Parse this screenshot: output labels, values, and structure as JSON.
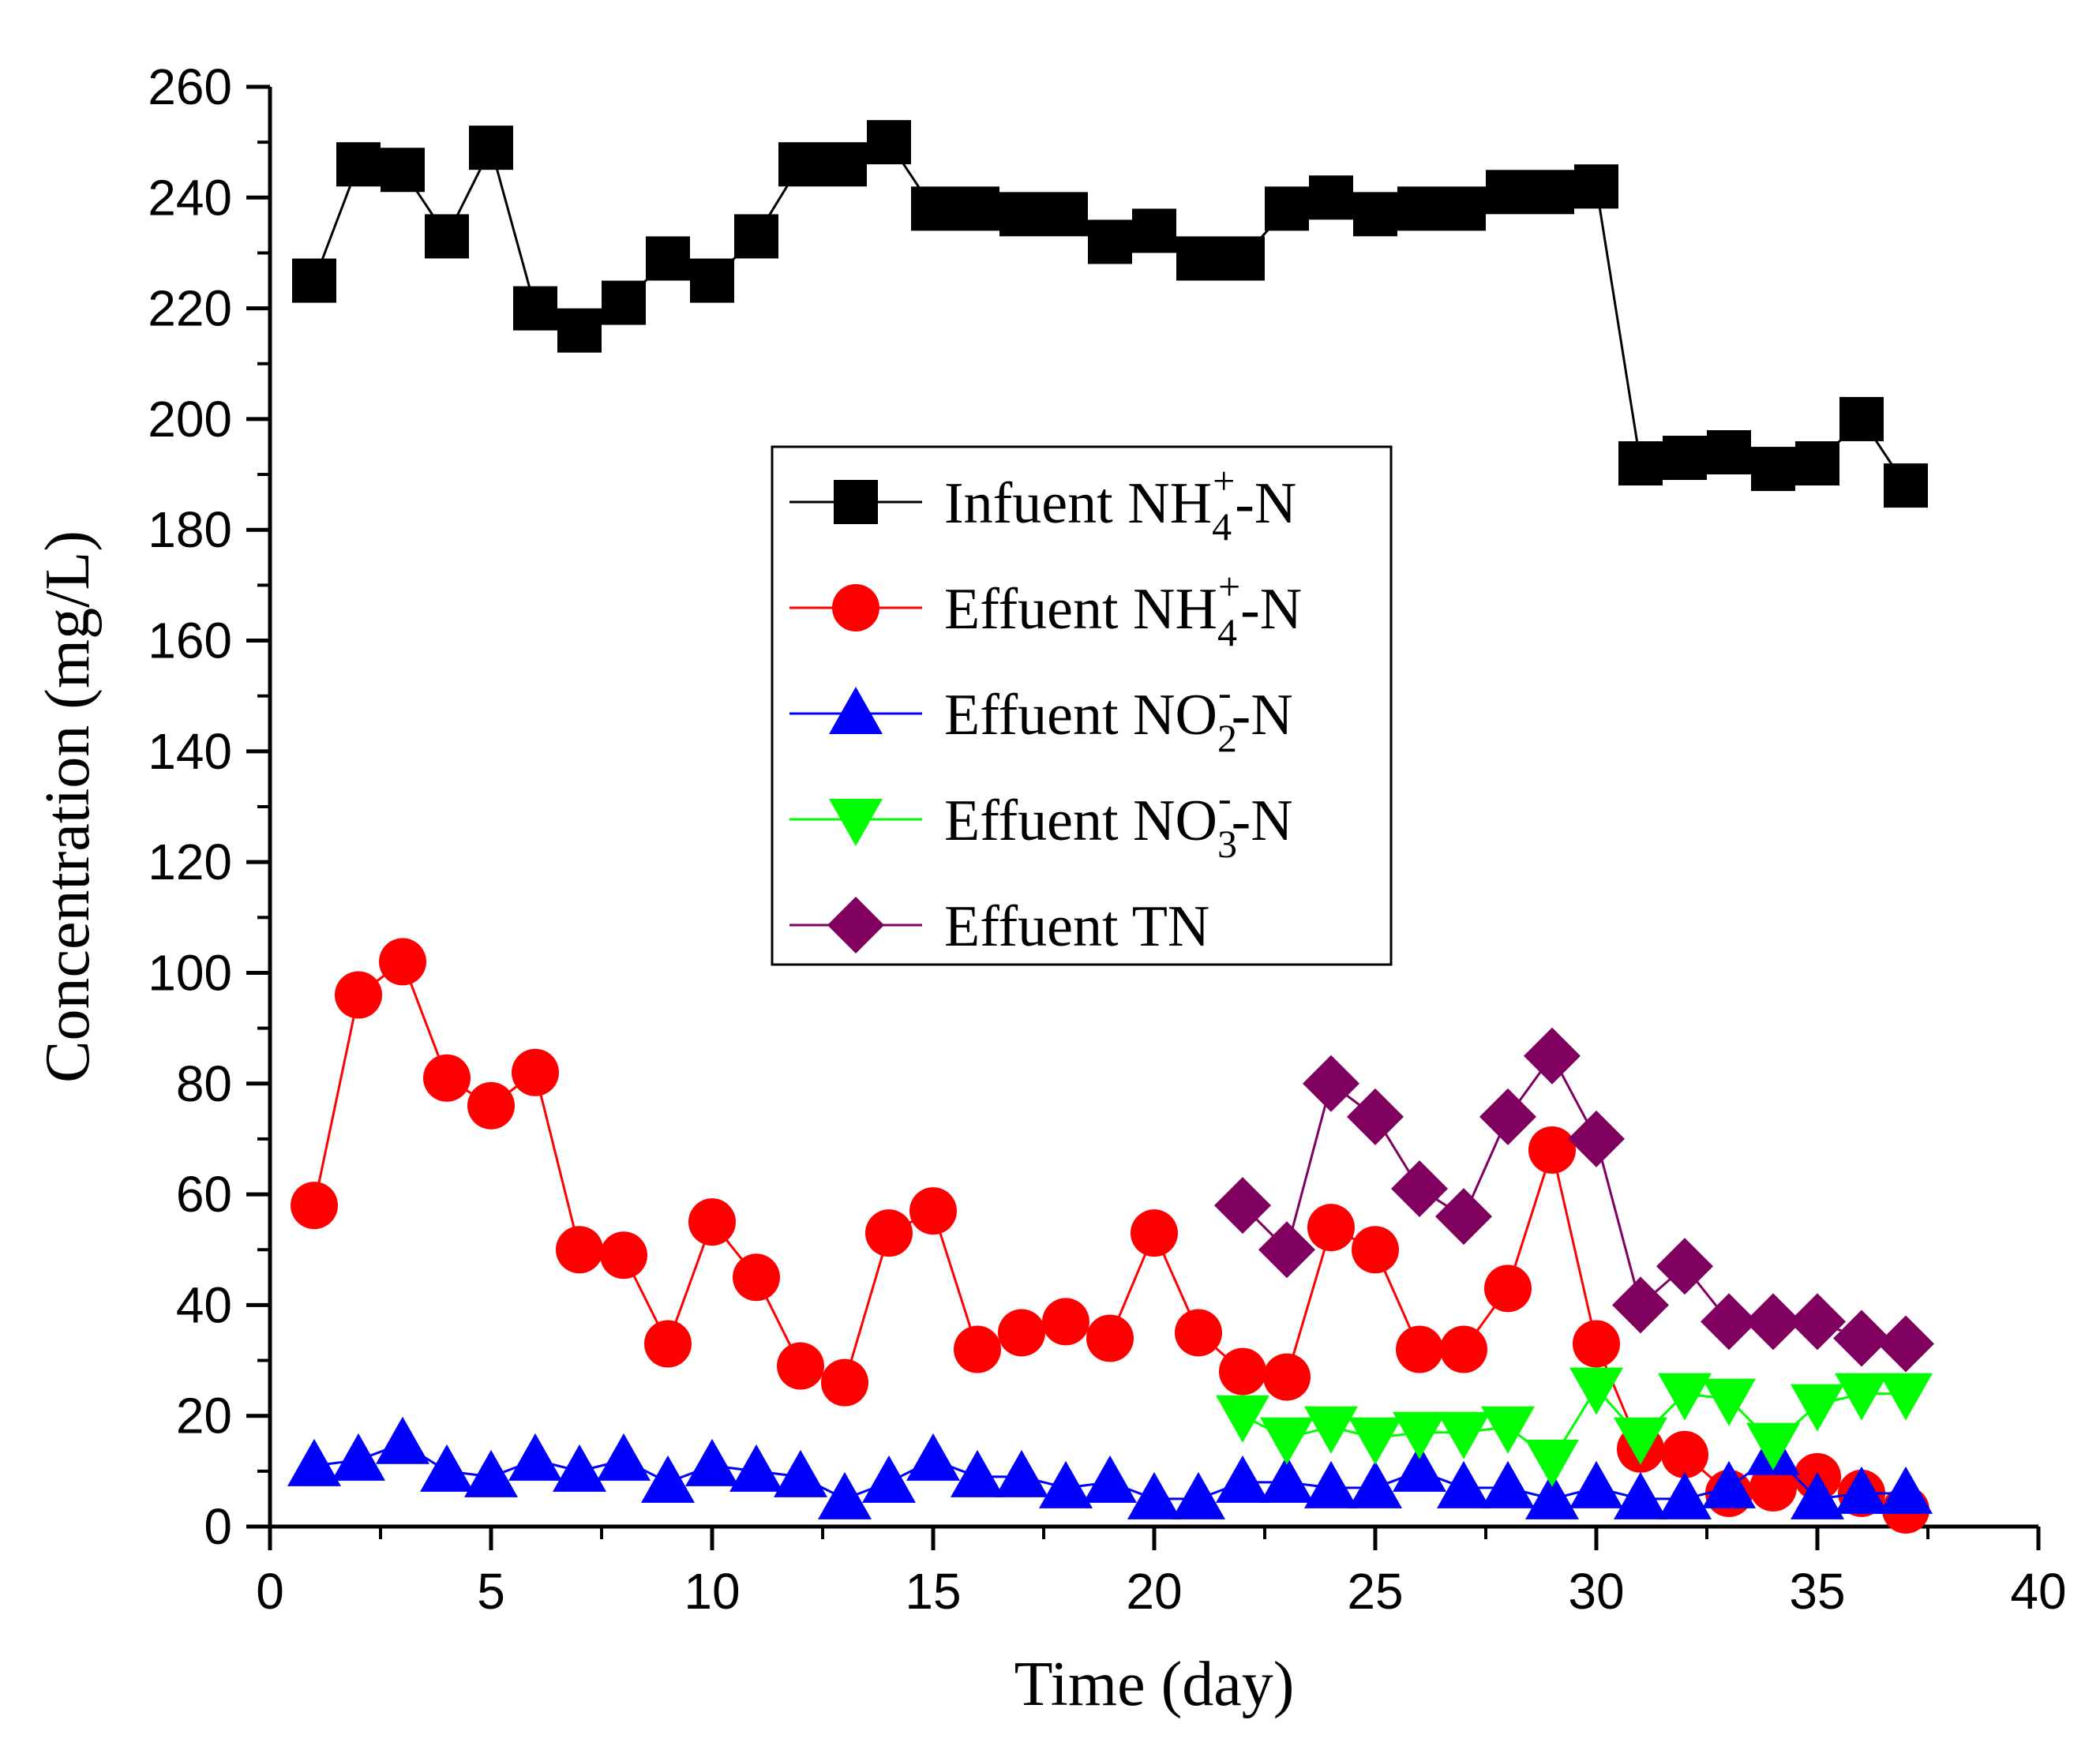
{
  "chart_data": {
    "type": "line",
    "title": "",
    "xlabel": "Time (day)",
    "ylabel": "Concentration (mg/L)",
    "xlim": [
      0,
      40
    ],
    "ylim": [
      0,
      260
    ],
    "xticks": [
      0,
      5,
      10,
      15,
      20,
      25,
      30,
      35,
      40
    ],
    "yticks": [
      0,
      20,
      40,
      60,
      80,
      100,
      120,
      140,
      160,
      180,
      200,
      220,
      240,
      260
    ],
    "grid": false,
    "legend_position": "center",
    "series": [
      {
        "name": "Infuent NH4+-N",
        "label_main": "Infuent NH",
        "label_sub": "4",
        "label_sup": "+",
        "label_tail": "-N",
        "color": "#000000",
        "marker": "square",
        "x": [
          1,
          2,
          3,
          4,
          5,
          6,
          7,
          8,
          9,
          10,
          11,
          12,
          13,
          14,
          15,
          16,
          17,
          18,
          19,
          20,
          21,
          22,
          23,
          24,
          25,
          26,
          27,
          28,
          29,
          30,
          31,
          32,
          33,
          34,
          35,
          36,
          37
        ],
        "values": [
          225,
          246,
          245,
          233,
          249,
          220,
          216,
          221,
          229,
          225,
          233,
          246,
          246,
          250,
          238,
          238,
          237,
          237,
          232,
          234,
          229,
          229,
          238,
          240,
          237,
          238,
          238,
          241,
          241,
          242,
          192,
          193,
          194,
          191,
          192,
          200,
          188
        ]
      },
      {
        "name": "Effuent NH4+-N",
        "label_main": "Effuent NH",
        "label_sub": "4",
        "label_sup": "+",
        "label_tail": "-N",
        "color": "#ff0000",
        "marker": "circle",
        "x": [
          1,
          2,
          3,
          4,
          5,
          6,
          7,
          8,
          9,
          10,
          11,
          12,
          13,
          14,
          15,
          16,
          17,
          18,
          19,
          20,
          21,
          22,
          23,
          24,
          25,
          26,
          27,
          28,
          29,
          30,
          31,
          32,
          33,
          34,
          35,
          36,
          37
        ],
        "values": [
          58,
          96,
          102,
          81,
          76,
          82,
          50,
          49,
          33,
          55,
          45,
          29,
          26,
          53,
          57,
          32,
          35,
          37,
          34,
          53,
          35,
          28,
          27,
          54,
          50,
          32,
          32,
          43,
          68,
          33,
          14,
          13,
          6,
          7,
          9,
          6,
          3
        ]
      },
      {
        "name": "Effuent NO2--N",
        "label_main": "Effuent NO",
        "label_sub": "2",
        "label_sup": "-",
        "label_tail": "-N",
        "color": "#0000ff",
        "marker": "triangle-up",
        "x": [
          1,
          2,
          3,
          4,
          5,
          6,
          7,
          8,
          9,
          10,
          11,
          12,
          13,
          14,
          15,
          16,
          17,
          18,
          19,
          20,
          21,
          22,
          23,
          24,
          25,
          26,
          27,
          28,
          29,
          30,
          31,
          32,
          33,
          34,
          35,
          36,
          37
        ],
        "values": [
          11,
          12,
          15,
          10,
          9,
          12,
          10,
          12,
          8,
          11,
          10,
          9,
          5,
          8,
          12,
          9,
          9,
          7,
          8,
          5,
          5,
          8,
          8,
          7,
          7,
          10,
          7,
          7,
          5,
          7,
          5,
          5,
          7,
          13,
          5,
          6,
          6
        ]
      },
      {
        "name": "Effuent NO3--N",
        "label_main": "Effuent NO",
        "label_sub": "3",
        "label_sup": "-",
        "label_tail": "-N",
        "color": "#00ff00",
        "marker": "triangle-down",
        "x": [
          22,
          23,
          24,
          25,
          26,
          27,
          28,
          29,
          30,
          31,
          32,
          33,
          34,
          35,
          36,
          37
        ],
        "values": [
          20,
          16,
          18,
          16,
          17,
          17,
          18,
          12,
          25,
          16,
          24,
          23,
          15,
          22,
          24,
          24
        ]
      },
      {
        "name": "Effuent TN",
        "label_main": "Effuent TN",
        "label_sub": "",
        "label_sup": "",
        "label_tail": "",
        "color": "#800060",
        "marker": "diamond",
        "x": [
          22,
          23,
          24,
          25,
          26,
          27,
          28,
          29,
          30,
          31,
          32,
          33,
          34,
          35,
          36,
          37
        ],
        "values": [
          58,
          50,
          80,
          74,
          61,
          56,
          74,
          85,
          70,
          40,
          47,
          37,
          37,
          37,
          34,
          33
        ]
      }
    ]
  }
}
